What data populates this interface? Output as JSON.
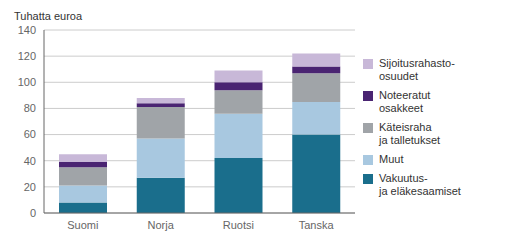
{
  "chart_data": {
    "type": "bar",
    "stacked": true,
    "ylabel": "Tuhatta euroa",
    "categories": [
      "Suomi",
      "Norja",
      "Ruotsi",
      "Tanska"
    ],
    "series": [
      {
        "name": "Vakuutus-\nja eläkesaamiset",
        "color": "#1a6e8c",
        "values": [
          8,
          27,
          42,
          60
        ]
      },
      {
        "name": "Muut",
        "color": "#a8c8e0",
        "values": [
          13,
          30,
          34,
          25
        ]
      },
      {
        "name": "Käteisraha\nja talletukset",
        "color": "#a0a4a8",
        "values": [
          14,
          24,
          18,
          22
        ]
      },
      {
        "name": "Noteeratut\nosakkeet",
        "color": "#4a2472",
        "values": [
          4,
          3,
          6,
          5
        ]
      },
      {
        "name": "Sijoitusrahasto-\nosuudet",
        "color": "#c8b8d8",
        "values": [
          6,
          4,
          9,
          10
        ]
      }
    ],
    "ylim": [
      0,
      140
    ],
    "yticks": [
      0,
      20,
      40,
      60,
      80,
      100,
      120,
      140
    ],
    "grid": true,
    "legend": "right"
  }
}
